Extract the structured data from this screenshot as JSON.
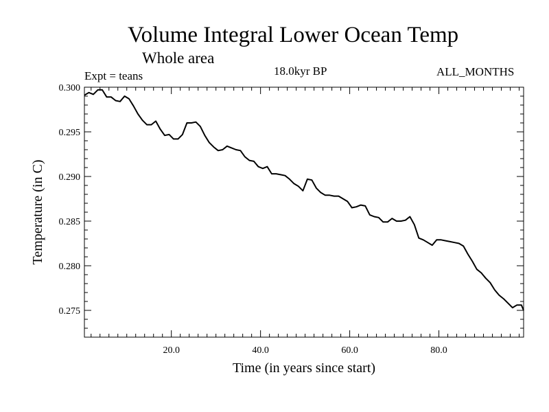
{
  "chart_data": {
    "type": "line",
    "title": "Volume Integral Lower Ocean Temp",
    "subtitle": "Whole area",
    "annotations": {
      "experiment": "Expt = teans",
      "period": "18.0kyr BP",
      "months": "ALL_MONTHS"
    },
    "xlabel": "Time (in years since start)",
    "ylabel": "Temperature (in C)",
    "xlim": [
      0.5,
      99
    ],
    "ylim": [
      0.272,
      0.3
    ],
    "xticks": [
      20,
      40,
      60,
      80
    ],
    "xtick_labels": [
      "20.0",
      "40.0",
      "60.0",
      "80.0"
    ],
    "yticks": [
      0.3,
      0.295,
      0.29,
      0.285,
      0.28,
      0.275
    ],
    "ytick_labels": [
      "0.300",
      "0.295",
      "0.290",
      "0.285",
      "0.280",
      "0.275"
    ],
    "grid": false,
    "series": [
      {
        "name": "Volume Integral Lower Ocean Temp",
        "x": [
          0.5,
          1.5,
          2.5,
          3.5,
          4.5,
          5.5,
          6.5,
          7.5,
          8.5,
          9.5,
          10.5,
          11.5,
          12.5,
          13.5,
          14.5,
          15.5,
          16.5,
          17.5,
          18.5,
          19.5,
          20.5,
          21.5,
          22.5,
          23.5,
          24.5,
          25.5,
          26.5,
          27.5,
          28.5,
          29.5,
          30.5,
          31.5,
          32.5,
          33.5,
          34.5,
          35.5,
          36.5,
          37.5,
          38.5,
          39.5,
          40.5,
          41.5,
          42.5,
          43.5,
          44.5,
          45.5,
          46.5,
          47.5,
          48.5,
          49.5,
          50.5,
          51.5,
          52.5,
          53.5,
          54.5,
          55.5,
          56.5,
          57.5,
          58.5,
          59.5,
          60.5,
          61.5,
          62.5,
          63.5,
          64.5,
          65.5,
          66.5,
          67.5,
          68.5,
          69.5,
          70.5,
          71.5,
          72.5,
          73.5,
          74.5,
          75.5,
          76.5,
          77.5,
          78.5,
          79.5,
          80.5,
          81.5,
          82.5,
          83.5,
          84.5,
          85.5,
          86.5,
          87.5,
          88.5,
          89.5,
          90.5,
          91.5,
          92.5,
          93.5,
          94.5,
          95.5,
          96.5,
          97.5,
          98.5,
          99
        ],
        "values": [
          0.2991,
          0.2994,
          0.2992,
          0.2997,
          0.2997,
          0.2989,
          0.2989,
          0.2985,
          0.2984,
          0.299,
          0.2987,
          0.2979,
          0.297,
          0.2963,
          0.2958,
          0.2958,
          0.2962,
          0.2953,
          0.2946,
          0.2947,
          0.2942,
          0.2942,
          0.2947,
          0.296,
          0.296,
          0.2961,
          0.2956,
          0.2946,
          0.2938,
          0.2933,
          0.2929,
          0.293,
          0.2934,
          0.2932,
          0.293,
          0.2929,
          0.2922,
          0.2918,
          0.2917,
          0.2911,
          0.2909,
          0.2911,
          0.2903,
          0.2903,
          0.2902,
          0.2901,
          0.2897,
          0.2892,
          0.2889,
          0.2884,
          0.2897,
          0.2896,
          0.2887,
          0.2882,
          0.2879,
          0.2879,
          0.2878,
          0.2878,
          0.2875,
          0.2872,
          0.2865,
          0.2866,
          0.2868,
          0.2867,
          0.2857,
          0.2855,
          0.2854,
          0.2849,
          0.2849,
          0.2853,
          0.285,
          0.285,
          0.2851,
          0.2855,
          0.2846,
          0.2831,
          0.2829,
          0.2826,
          0.2823,
          0.2829,
          0.2829,
          0.2828,
          0.2827,
          0.2826,
          0.2825,
          0.2822,
          0.2813,
          0.2805,
          0.2796,
          0.2792,
          0.2786,
          0.2781,
          0.2773,
          0.2767,
          0.2763,
          0.2758,
          0.2753,
          0.2756,
          0.2756,
          0.275
        ]
      }
    ]
  }
}
